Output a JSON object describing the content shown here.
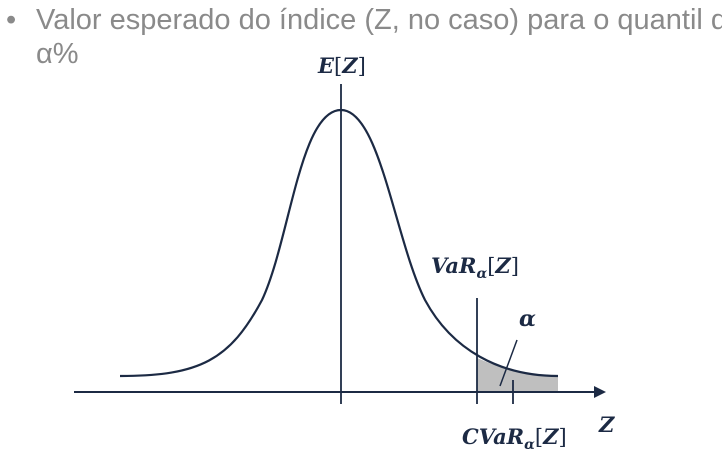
{
  "bullet": {
    "marker": "•",
    "line1": "Valor esperado do índice (Z, no caso) para o quantil de",
    "line2": "α%"
  },
  "diagram": {
    "mean_label_var": "E",
    "mean_label_arg": "Z",
    "var_label_var": "VaR",
    "var_label_sub": "α",
    "var_label_arg": "Z",
    "alpha_label": "α",
    "cvar_label_var": "CVaR",
    "cvar_label_sub": "α",
    "cvar_label_arg": "Z",
    "axis_label": "Z",
    "colors": {
      "curve": "#1c2a44",
      "axis": "#1c2a44",
      "tail_fill": "#bfbfbf",
      "bullet_text": "#8a8a8a"
    }
  }
}
